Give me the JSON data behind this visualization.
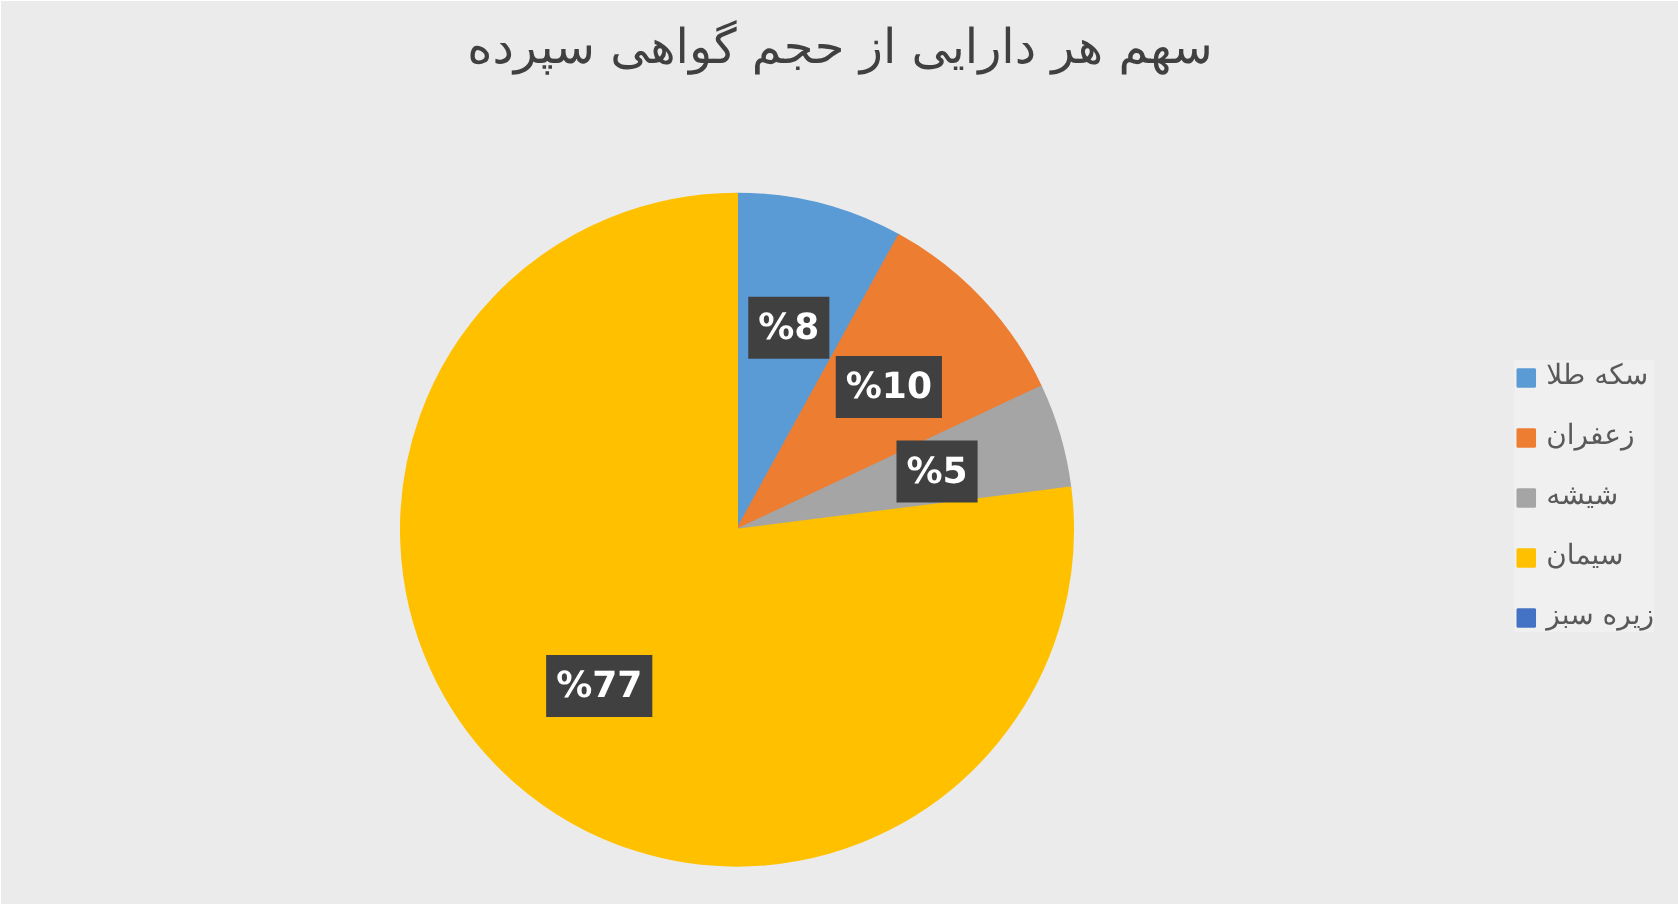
{
  "chart_data": {
    "type": "pie",
    "title": "سهم هر دارایی از حجم گواهی سپرده",
    "categories": [
      "سکه طلا",
      "زعفران",
      "شیشه",
      "سیمان",
      "زیره سبز"
    ],
    "values": [
      8,
      10,
      5,
      77,
      0
    ],
    "colors": [
      "#5b9bd5",
      "#ed7d31",
      "#a5a5a5",
      "#ffc000",
      "#4472c4"
    ],
    "value_labels": [
      "%8",
      "%10",
      "%5",
      "%77",
      null
    ],
    "legend": "right"
  }
}
